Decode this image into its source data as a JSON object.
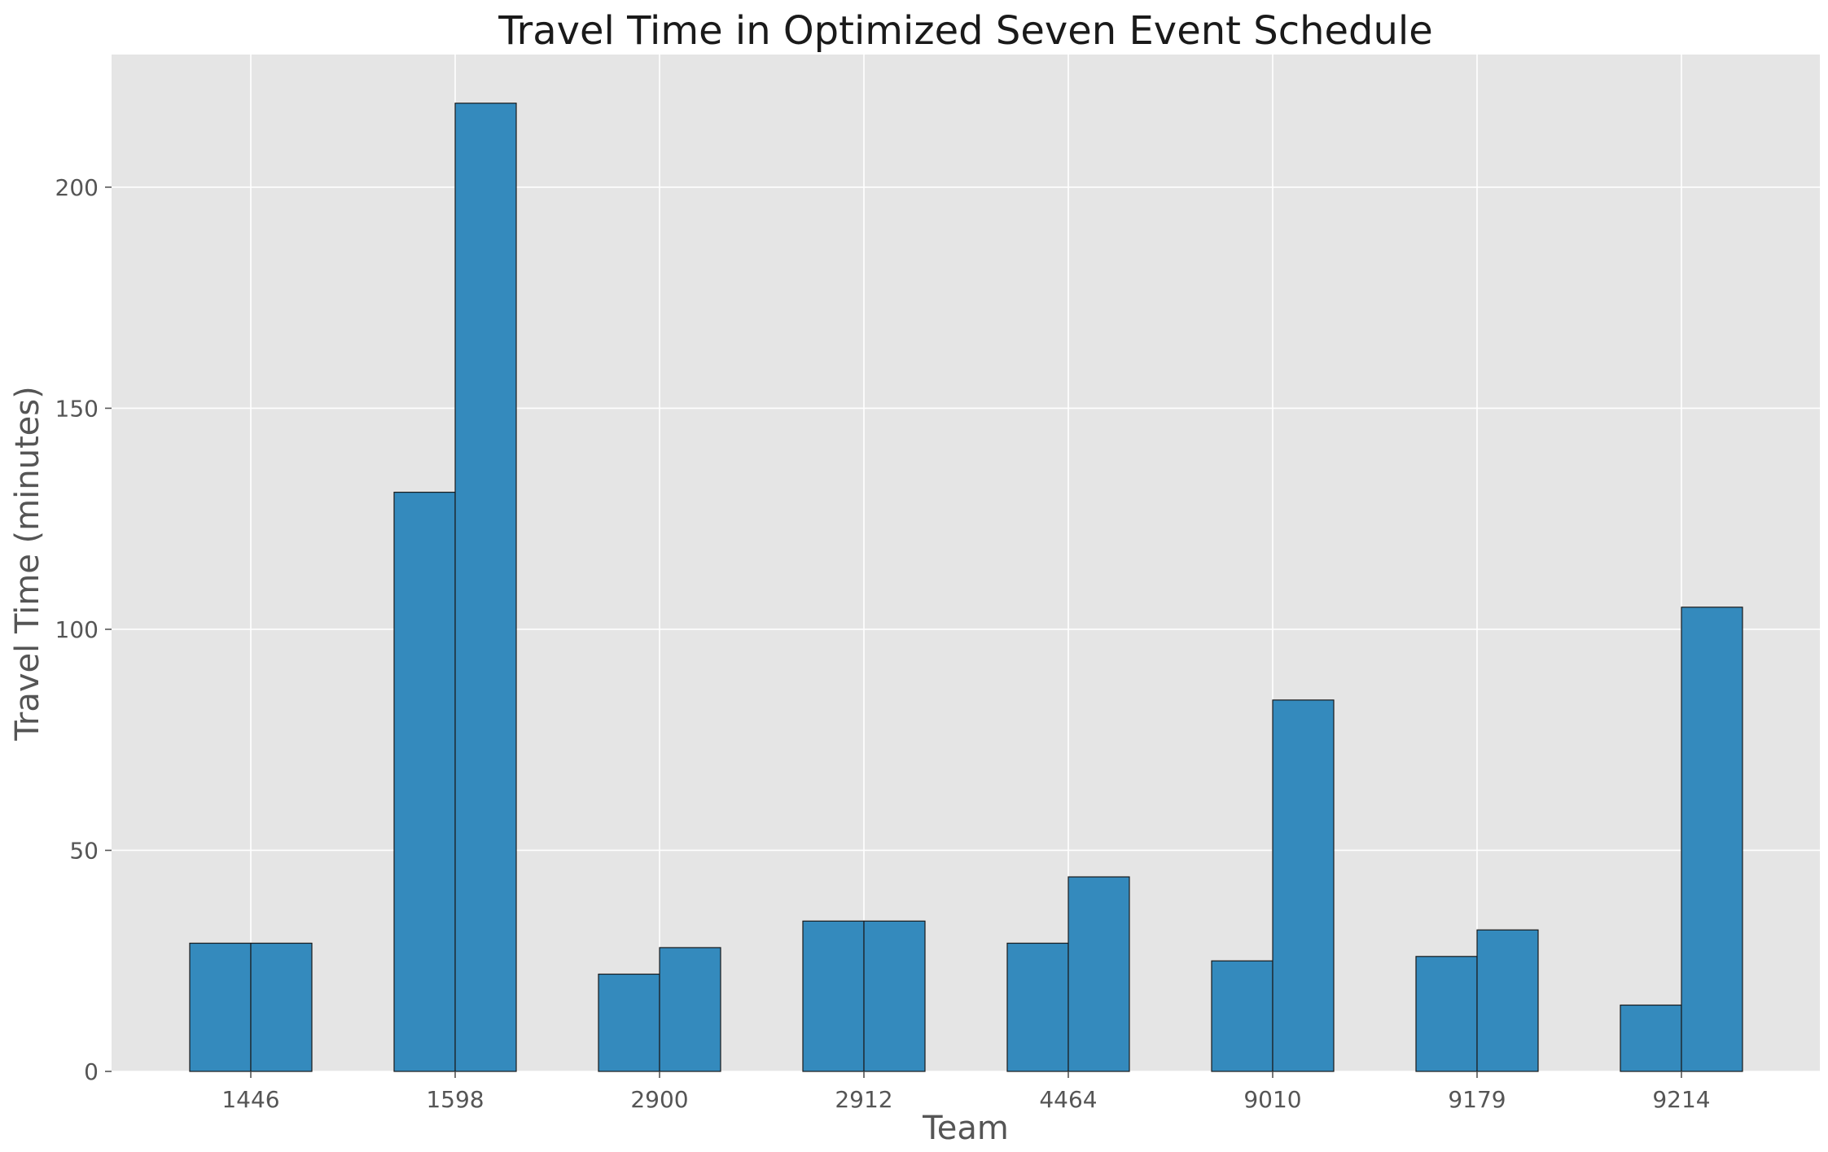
{
  "chart_data": {
    "type": "bar",
    "title": "Travel Time in Optimized Seven Event Schedule",
    "xlabel": "Team",
    "ylabel": "Travel Time (minutes)",
    "categories": [
      "1446",
      "1598",
      "2900",
      "2912",
      "4464",
      "9010",
      "9179",
      "9214"
    ],
    "series": [
      {
        "values": [
          29,
          131,
          22,
          34,
          29,
          25,
          26,
          15
        ]
      },
      {
        "values": [
          29,
          219,
          28,
          34,
          44,
          84,
          32,
          105
        ]
      }
    ],
    "ylim": [
      0,
      230
    ],
    "yticks": [
      0,
      50,
      100,
      150,
      200
    ],
    "grid": true,
    "colors": {
      "bar": "#348abd",
      "plot_bg": "#e5e5e5",
      "edge": "#1a1a1a"
    }
  }
}
